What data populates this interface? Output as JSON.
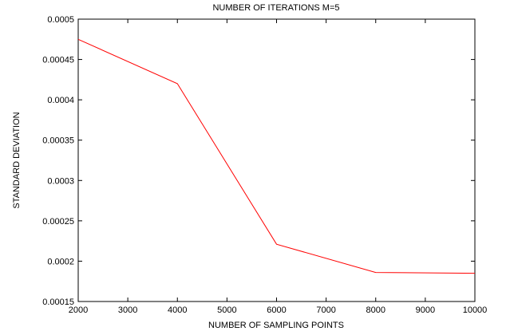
{
  "chart_data": {
    "type": "line",
    "title": "NUMBER OF ITERATIONS M=5",
    "xlabel": "NUMBER OF SAMPLING POINTS",
    "ylabel": "STANDARD DEVIATION",
    "xlim": [
      2000,
      10000
    ],
    "ylim": [
      0.00015,
      0.0005
    ],
    "x_ticks": [
      2000,
      3000,
      4000,
      5000,
      6000,
      7000,
      8000,
      9000,
      10000
    ],
    "x_tick_labels": [
      "2000",
      "3000",
      "4000",
      "5000",
      "6000",
      "7000",
      "8000",
      "9000",
      "10000"
    ],
    "y_ticks": [
      0.00015,
      0.0002,
      0.00025,
      0.0003,
      0.00035,
      0.0004,
      0.00045,
      0.0005
    ],
    "y_tick_labels": [
      "0.00015",
      "0.0002",
      "0.00025",
      "0.0003",
      "0.00035",
      "0.0004",
      "0.00045",
      "0.0005"
    ],
    "grid": false,
    "legend": "none",
    "series": [
      {
        "color": "#ff0000",
        "x": [
          2000,
          4000,
          6000,
          8000,
          10000
        ],
        "y": [
          0.000475,
          0.00042,
          0.000221,
          0.000186,
          0.000185
        ]
      }
    ]
  }
}
